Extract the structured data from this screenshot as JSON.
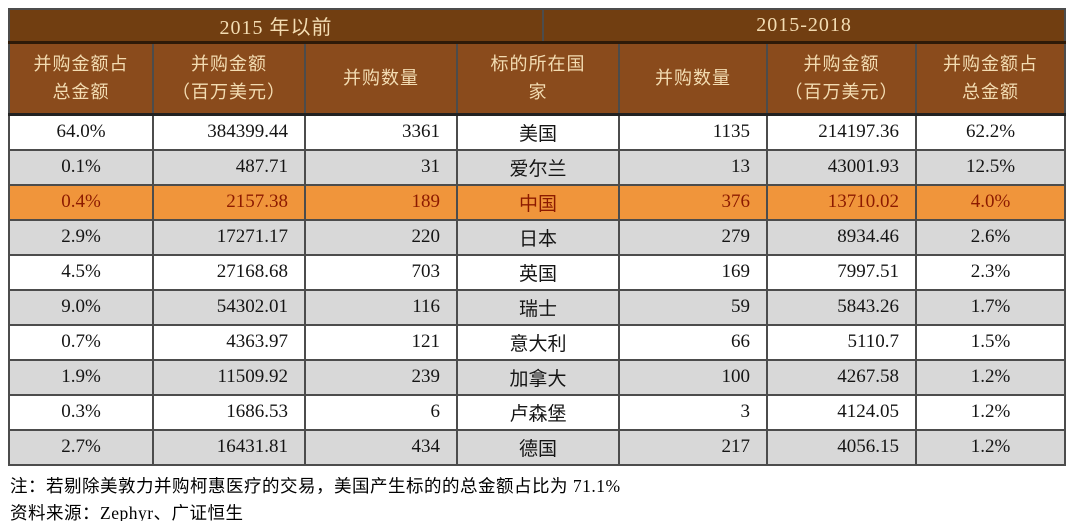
{
  "colors": {
    "period_header_bg": "#713e11",
    "column_header_bg": "#8a4b1c",
    "header_text": "#f3dcb2",
    "stripe_gray": "#d8d8d8",
    "highlight_orange": "#f0953b",
    "highlight_text": "#8c1a00",
    "border": "#4c4c4c"
  },
  "table": {
    "period_headers": [
      {
        "label": "2015 年以前"
      },
      {
        "label": "2015-2018"
      }
    ],
    "column_headers": [
      "并购金额占\n总金额",
      "并购金额\n（百万美元）",
      "并购数量",
      "标的所在国\n家",
      "并购数量",
      "并购金额\n（百万美元）",
      "并购金额占\n总金额"
    ],
    "rows": [
      {
        "pre_pct": "64.0%",
        "pre_amount": "384399.44",
        "pre_count": "3361",
        "country": "美国",
        "post_count": "1135",
        "post_amount": "214197.36",
        "post_pct": "62.2%",
        "highlight": false
      },
      {
        "pre_pct": "0.1%",
        "pre_amount": "487.71",
        "pre_count": "31",
        "country": "爱尔兰",
        "post_count": "13",
        "post_amount": "43001.93",
        "post_pct": "12.5%",
        "highlight": false
      },
      {
        "pre_pct": "0.4%",
        "pre_amount": "2157.38",
        "pre_count": "189",
        "country": "中国",
        "post_count": "376",
        "post_amount": "13710.02",
        "post_pct": "4.0%",
        "highlight": true
      },
      {
        "pre_pct": "2.9%",
        "pre_amount": "17271.17",
        "pre_count": "220",
        "country": "日本",
        "post_count": "279",
        "post_amount": "8934.46",
        "post_pct": "2.6%",
        "highlight": false
      },
      {
        "pre_pct": "4.5%",
        "pre_amount": "27168.68",
        "pre_count": "703",
        "country": "英国",
        "post_count": "169",
        "post_amount": "7997.51",
        "post_pct": "2.3%",
        "highlight": false
      },
      {
        "pre_pct": "9.0%",
        "pre_amount": "54302.01",
        "pre_count": "116",
        "country": "瑞士",
        "post_count": "59",
        "post_amount": "5843.26",
        "post_pct": "1.7%",
        "highlight": false
      },
      {
        "pre_pct": "0.7%",
        "pre_amount": "4363.97",
        "pre_count": "121",
        "country": "意大利",
        "post_count": "66",
        "post_amount": "5110.7",
        "post_pct": "1.5%",
        "highlight": false
      },
      {
        "pre_pct": "1.9%",
        "pre_amount": "11509.92",
        "pre_count": "239",
        "country": "加拿大",
        "post_count": "100",
        "post_amount": "4267.58",
        "post_pct": "1.2%",
        "highlight": false
      },
      {
        "pre_pct": "0.3%",
        "pre_amount": "1686.53",
        "pre_count": "6",
        "country": "卢森堡",
        "post_count": "3",
        "post_amount": "4124.05",
        "post_pct": "1.2%",
        "highlight": false
      },
      {
        "pre_pct": "2.7%",
        "pre_amount": "16431.81",
        "pre_count": "434",
        "country": "德国",
        "post_count": "217",
        "post_amount": "4056.15",
        "post_pct": "1.2%",
        "highlight": false
      }
    ]
  },
  "notes": {
    "footnote": "注：若剔除美敦力并购柯惠医疗的交易，美国产生标的的总金额占比为 71.1%",
    "source": "资料来源：Zephyr、广证恒生"
  },
  "chart_data": {
    "type": "table",
    "title": "跨境并购标的所在国家统计：2015年以前 vs 2015-2018",
    "columns": [
      "并购金额占总金额(2015年以前)",
      "并购金额(百万美元)(2015年以前)",
      "并购数量(2015年以前)",
      "标的所在国家",
      "并购数量(2015-2018)",
      "并购金额(百万美元)(2015-2018)",
      "并购金额占总金额(2015-2018)"
    ],
    "rows": [
      [
        "64.0%",
        384399.44,
        3361,
        "美国",
        1135,
        214197.36,
        "62.2%"
      ],
      [
        "0.1%",
        487.71,
        31,
        "爱尔兰",
        13,
        43001.93,
        "12.5%"
      ],
      [
        "0.4%",
        2157.38,
        189,
        "中国",
        376,
        13710.02,
        "4.0%"
      ],
      [
        "2.9%",
        17271.17,
        220,
        "日本",
        279,
        8934.46,
        "2.6%"
      ],
      [
        "4.5%",
        27168.68,
        703,
        "英国",
        169,
        7997.51,
        "2.3%"
      ],
      [
        "9.0%",
        54302.01,
        116,
        "瑞士",
        59,
        5843.26,
        "1.7%"
      ],
      [
        "0.7%",
        4363.97,
        121,
        "意大利",
        66,
        5110.7,
        "1.5%"
      ],
      [
        "1.9%",
        11509.92,
        239,
        "加拿大",
        100,
        4267.58,
        "1.2%"
      ],
      [
        "0.3%",
        1686.53,
        6,
        "卢森堡",
        3,
        4124.05,
        "1.2%"
      ],
      [
        "2.7%",
        16431.81,
        434,
        "德国",
        217,
        4056.15,
        "1.2%"
      ]
    ],
    "highlighted_row": "中国"
  }
}
